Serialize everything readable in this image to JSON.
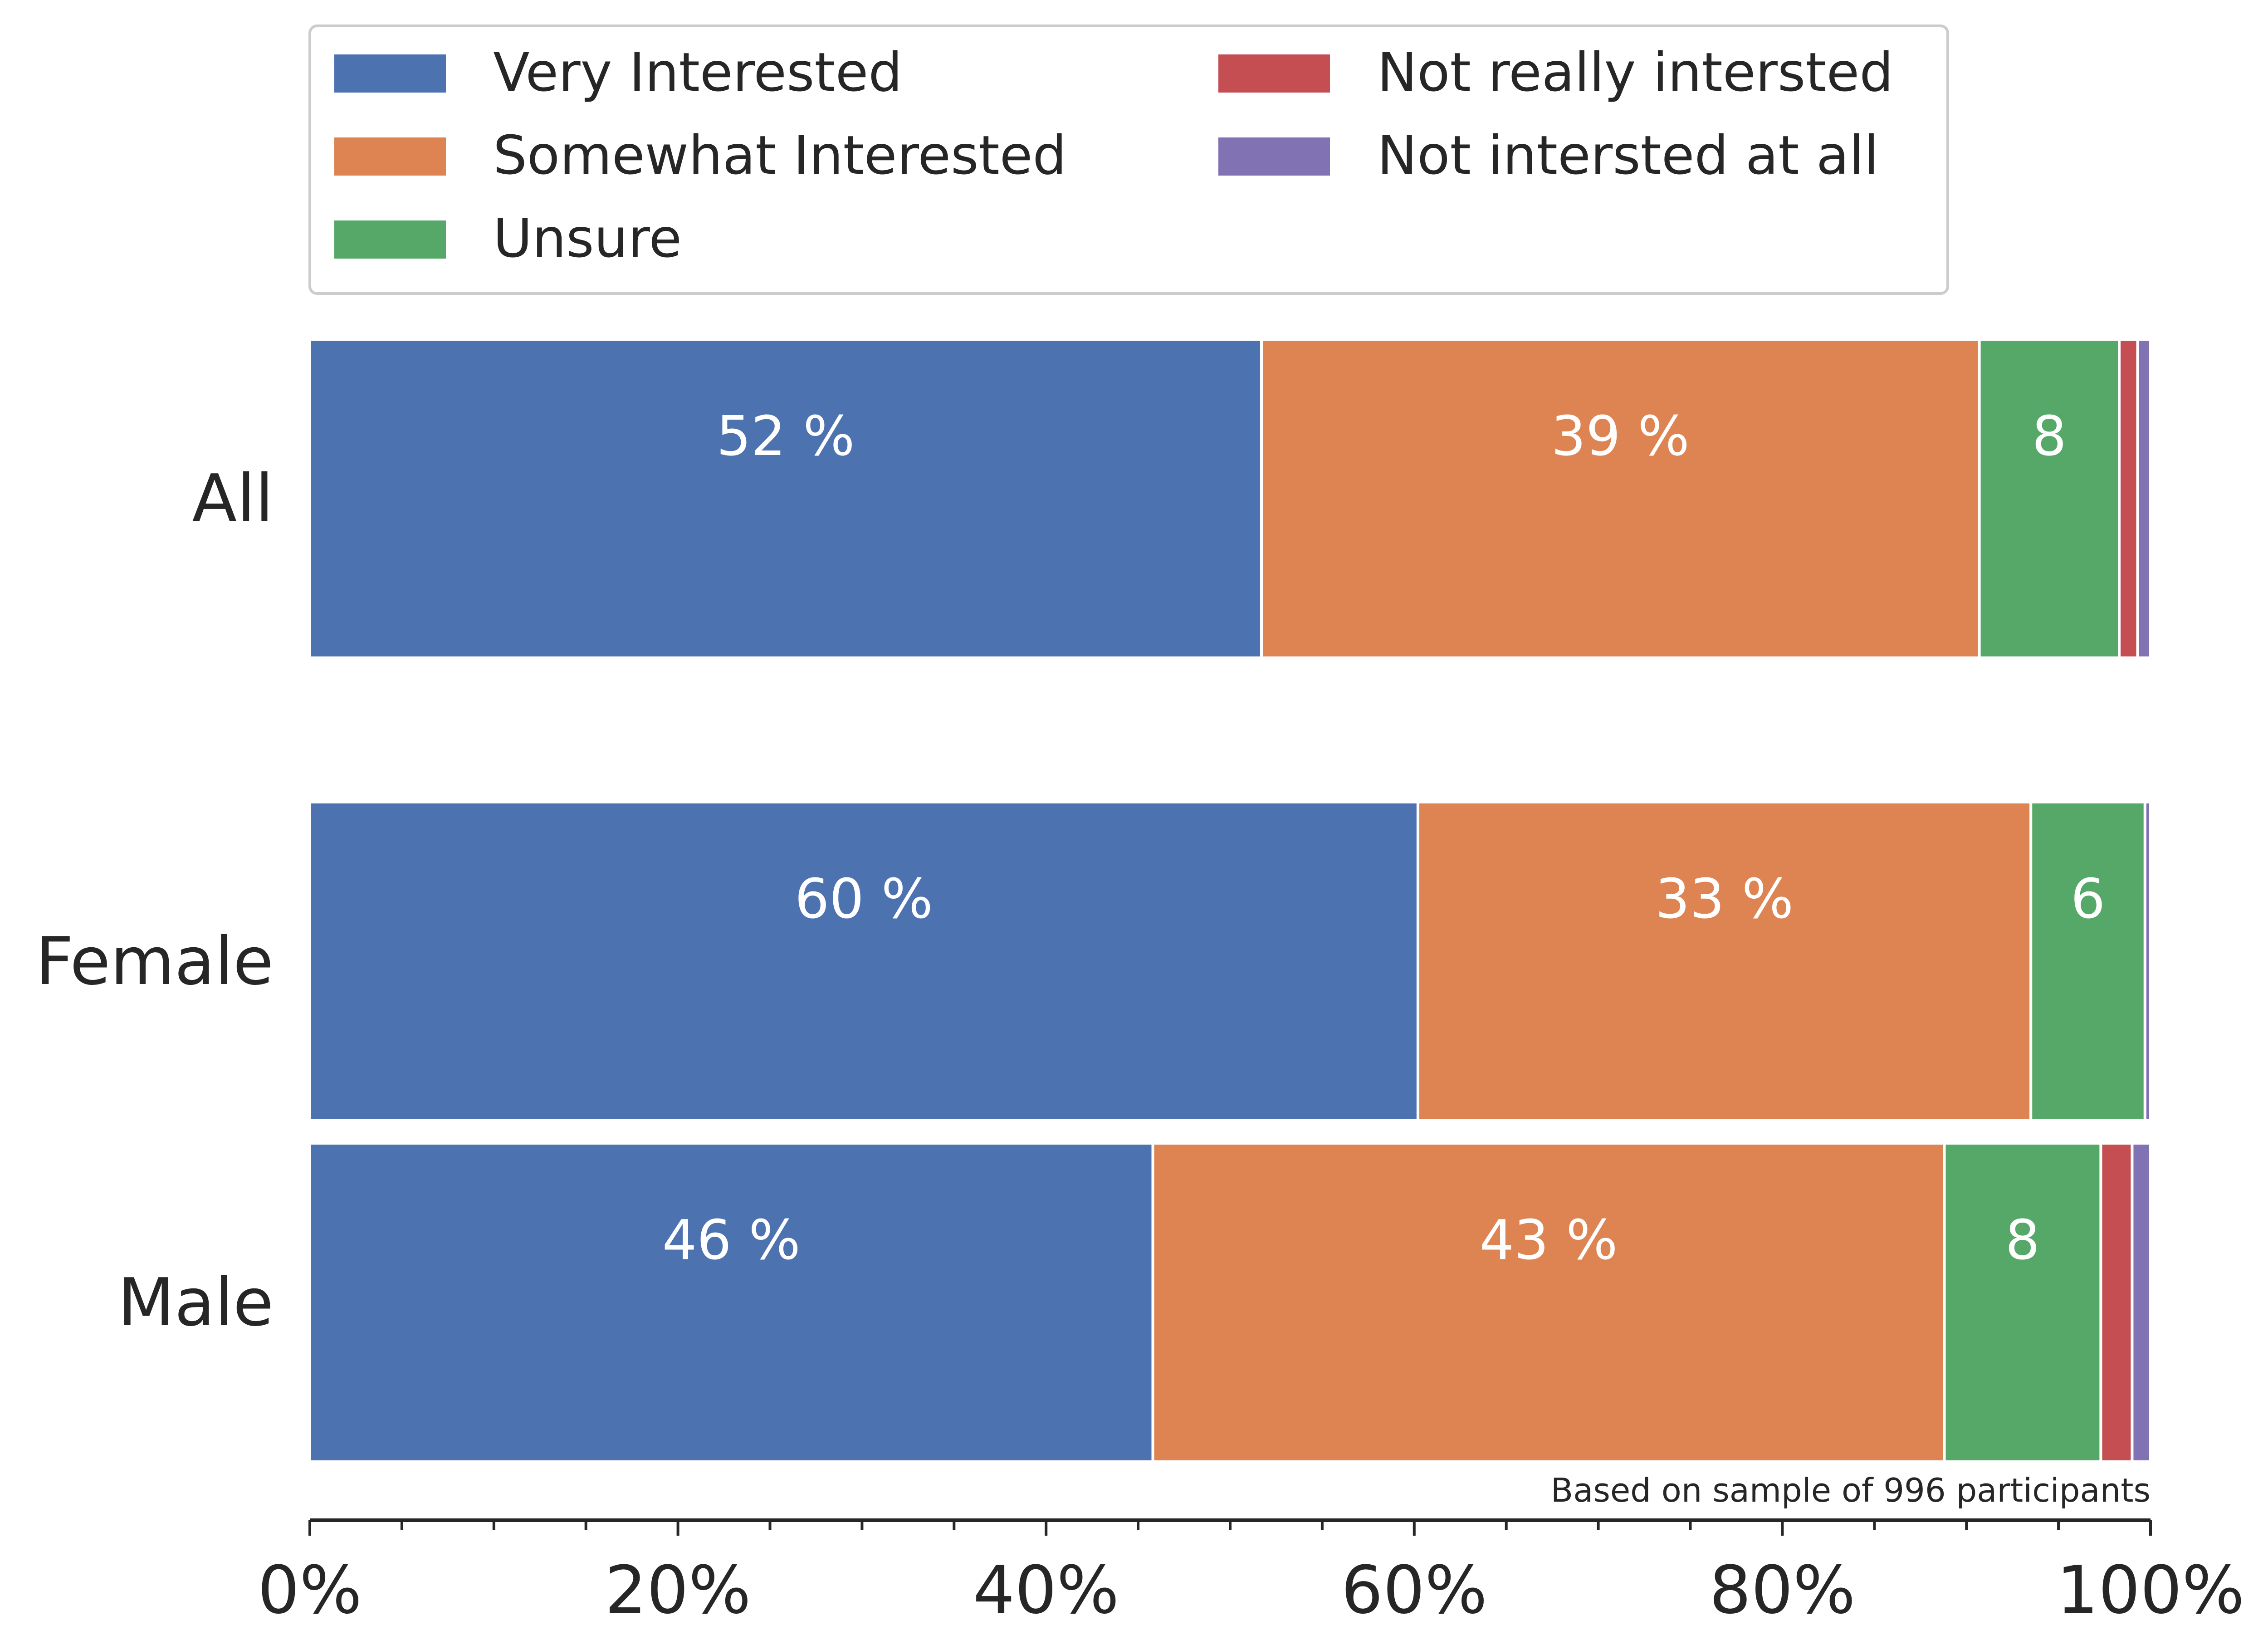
{
  "chart_data": {
    "type": "bar",
    "orientation": "horizontal",
    "stacked": true,
    "normalized": true,
    "categories": [
      "All",
      "Female",
      "Male"
    ],
    "series": [
      {
        "name": "Very Interested",
        "color": "#4c72b0",
        "values": [
          51.7,
          60.2,
          45.8
        ]
      },
      {
        "name": "Somewhat Interested",
        "color": "#dd8452",
        "values": [
          39.0,
          33.3,
          43.0
        ]
      },
      {
        "name": "Unsure",
        "color": "#55a868",
        "values": [
          7.6,
          6.2,
          8.5
        ]
      },
      {
        "name": "Not really intersted",
        "color": "#c44e52",
        "values": [
          1.0,
          0.0,
          1.7
        ]
      },
      {
        "name": "Not intersted at all",
        "color": "#8172b3",
        "values": [
          0.7,
          0.3,
          1.0
        ]
      }
    ],
    "data_labels": [
      [
        "52 %",
        "39 %",
        "8",
        "",
        ""
      ],
      [
        "60 %",
        "33 %",
        "6",
        "",
        ""
      ],
      [
        "46 %",
        "43 %",
        "8",
        "",
        ""
      ]
    ],
    "xlim": [
      0,
      100
    ],
    "xticks": [
      "0%",
      "20%",
      "40%",
      "60%",
      "80%",
      "100%"
    ],
    "xlabel": "",
    "ylabel": "",
    "legend": {
      "placement": "top",
      "columns": 2
    },
    "annotation": "Based on sample of 996 participants",
    "grid": false
  }
}
